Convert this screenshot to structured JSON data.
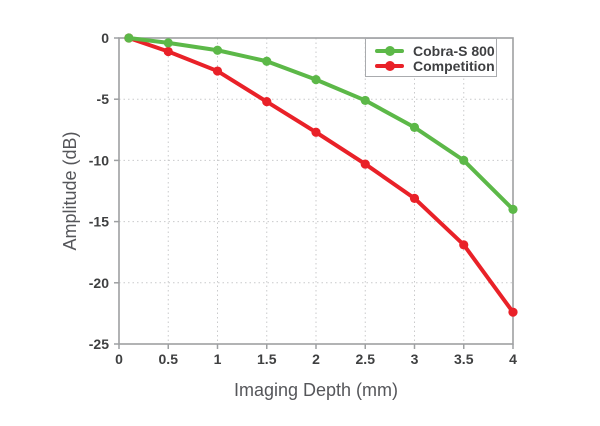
{
  "chart_data": {
    "type": "line",
    "xlabel": "Imaging Depth (mm)",
    "ylabel": "Amplitude (dB)",
    "xlim": [
      0,
      4
    ],
    "ylim": [
      -25,
      0
    ],
    "xticks": [
      0,
      0.5,
      1,
      1.5,
      2,
      2.5,
      3,
      3.5,
      4
    ],
    "xtick_labels": [
      "0",
      "0.5",
      "1",
      "1.5",
      "2",
      "2.5",
      "3",
      "3.5",
      "4"
    ],
    "yticks": [
      0,
      -5,
      -10,
      -15,
      -20,
      -25
    ],
    "ytick_labels": [
      "0",
      "-5",
      "-10",
      "-15",
      "-20",
      "-25"
    ],
    "grid": true,
    "grid_style": "dotted",
    "legend_position": "top-right",
    "x": [
      0.1,
      0.5,
      1,
      1.5,
      2,
      2.5,
      3,
      3.5,
      4
    ],
    "series": [
      {
        "name": "Cobra-S 800",
        "color": "#5cb848",
        "values": [
          0,
          -0.4,
          -1.0,
          -1.9,
          -3.4,
          -5.1,
          -7.3,
          -10.0,
          -14.0
        ]
      },
      {
        "name": "Competition",
        "color": "#e92128",
        "values": [
          0,
          -1.1,
          -2.7,
          -5.2,
          -7.7,
          -10.3,
          -13.1,
          -16.9,
          -22.4
        ]
      }
    ]
  },
  "colors": {
    "background": "#ffffff",
    "series_green": "#5cb848",
    "series_red": "#e92128",
    "frame": "#9ea0a2",
    "gridline": "#c9cacb",
    "tick_text": "#3f4041",
    "axis_title_text": "#55565a",
    "legend_border": "#a9abae"
  }
}
